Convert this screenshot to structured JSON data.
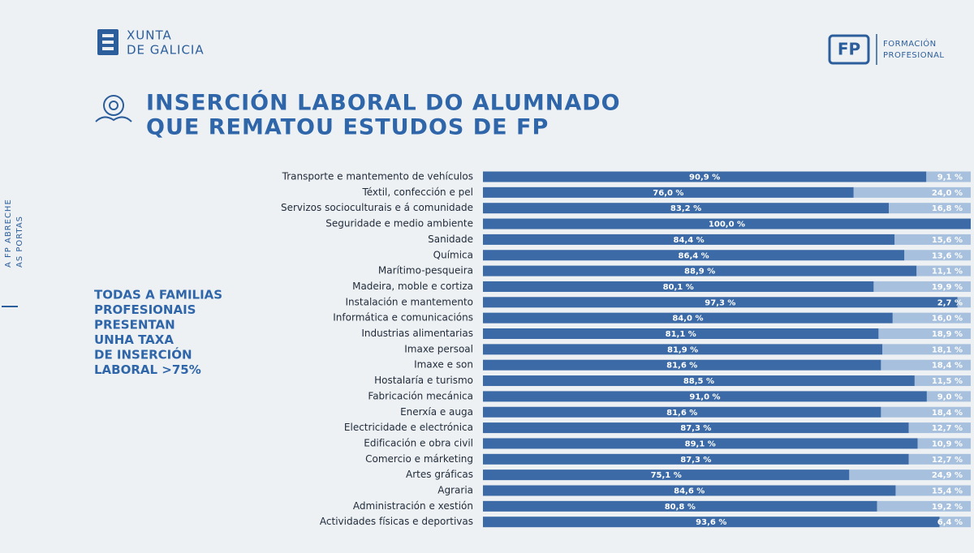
{
  "header": {
    "brand": [
      "XUNTA",
      "DE GALICIA"
    ],
    "fp": "FP",
    "fp_text": [
      "FORMACIÓN",
      "PROFESIONAL"
    ],
    "title": [
      "INSERCIÓN LABORAL DO ALUMNADO",
      "QUE REMATOU ESTUDOS DE FP"
    ],
    "side": [
      "A FP ABRECHE",
      "AS PORTAS"
    ]
  },
  "note": [
    "TODAS A FAMILIAS",
    "PROFESIONAIS",
    "PRESENTAN",
    "UNHA TAXA",
    "DE INSERCIÓN",
    "LABORAL >75%"
  ],
  "chart_data": {
    "type": "bar",
    "orientation": "horizontal",
    "stacked": true,
    "categories": [
      "Transporte e mantemento de vehículos",
      "Téxtil, confección e pel",
      "Servizos socioculturais e á comunidade",
      "Seguridade e medio ambiente",
      "Sanidade",
      "Química",
      "Marítimo-pesqueira",
      "Madeira, moble e cortiza",
      "Instalación e mantemento",
      "Informática e comunicacións",
      "Industrias alimentarias",
      "Imaxe persoal",
      "Imaxe e son",
      "Hostalaría e turismo",
      "Fabricación mecánica",
      "Enerxía e auga",
      "Electricidade e electrónica",
      "Edificación e obra civil",
      "Comercio e márketing",
      "Artes gráficas",
      "Agraria",
      "Administración e xestión",
      "Actividades físicas e deportivas"
    ],
    "xlim": [
      0,
      100
    ],
    "series": [
      {
        "color": "#3b6aa6",
        "values": [
          90.9,
          76.0,
          83.2,
          100.0,
          84.4,
          86.4,
          88.9,
          80.1,
          97.3,
          84.0,
          81.1,
          81.9,
          81.6,
          88.5,
          91.0,
          81.6,
          87.3,
          89.1,
          87.3,
          75.1,
          84.6,
          80.8,
          93.6
        ],
        "value_labels": [
          "90,9 %",
          "76,0 %",
          "83,2 %",
          "100,0 %",
          "84,4 %",
          "86,4 %",
          "88,9 %",
          "80,1 %",
          "97,3 %",
          "84,0 %",
          "81,1 %",
          "81,9 %",
          "81,6 %",
          "88,5 %",
          "91,0 %",
          "81,6 %",
          "87,3 %",
          "89,1 %",
          "87,3 %",
          "75,1 %",
          "84,6 %",
          "80,8 %",
          "93,6 %"
        ]
      },
      {
        "color": "#a6c0de",
        "values": [
          9.1,
          24.0,
          16.8,
          0,
          15.6,
          13.6,
          11.1,
          19.9,
          2.7,
          16.0,
          18.9,
          18.1,
          18.4,
          11.5,
          9.0,
          18.4,
          12.7,
          10.9,
          12.7,
          24.9,
          15.4,
          19.2,
          6.4
        ],
        "value_labels": [
          "9,1 %",
          "24,0 %",
          "16,8 %",
          null,
          "15,6 %",
          "13,6 %",
          "11,1 %",
          "19,9 %",
          "2,7 %",
          "16,0 %",
          "18,9 %",
          "18,1 %",
          "18,4 %",
          "11,5 %",
          "9,0 %",
          "18,4 %",
          "12,7 %",
          "10,9 %",
          "12,7 %",
          "24,9 %",
          "15,4 %",
          "19,2 %",
          "6,4 %"
        ]
      }
    ]
  }
}
